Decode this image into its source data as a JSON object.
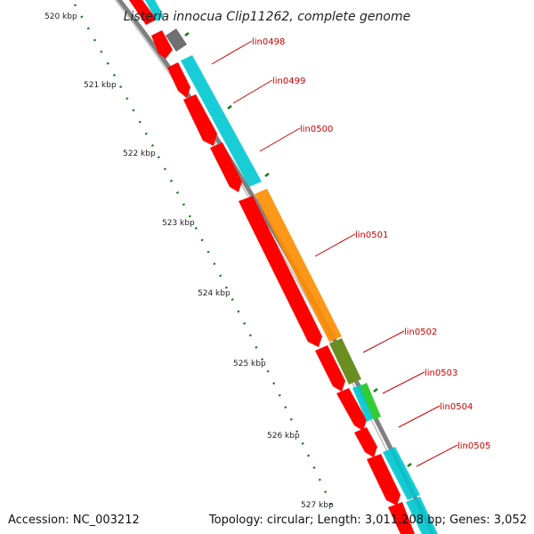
{
  "title": "Listeria innocua Clip11262, complete genome",
  "footer": {
    "accession": "Accession: NC_003212",
    "summary": "Topology: circular; Length: 3,011,208 bp; Genes: 3,052"
  },
  "colors": {
    "backbone": "#808080",
    "cds": "#ff0000",
    "blast_cyan": "#00c8d2",
    "blast_orange": "#ff8c00",
    "blast_olive": "#6b8e23",
    "blast_green": "#32cd32",
    "grey_feature": "#707070",
    "ticks": "#1a7a1a",
    "labels": "#cc0000"
  },
  "ticks": [
    "520 kbp",
    "521 kbp",
    "522 kbp",
    "523 kbp",
    "524 kbp",
    "525 kbp",
    "526 kbp",
    "527 kbp"
  ],
  "genes": [
    "lin0498",
    "lin0499",
    "lin0500",
    "lin0501",
    "lin0502",
    "lin0503",
    "lin0504",
    "lin0505"
  ]
}
